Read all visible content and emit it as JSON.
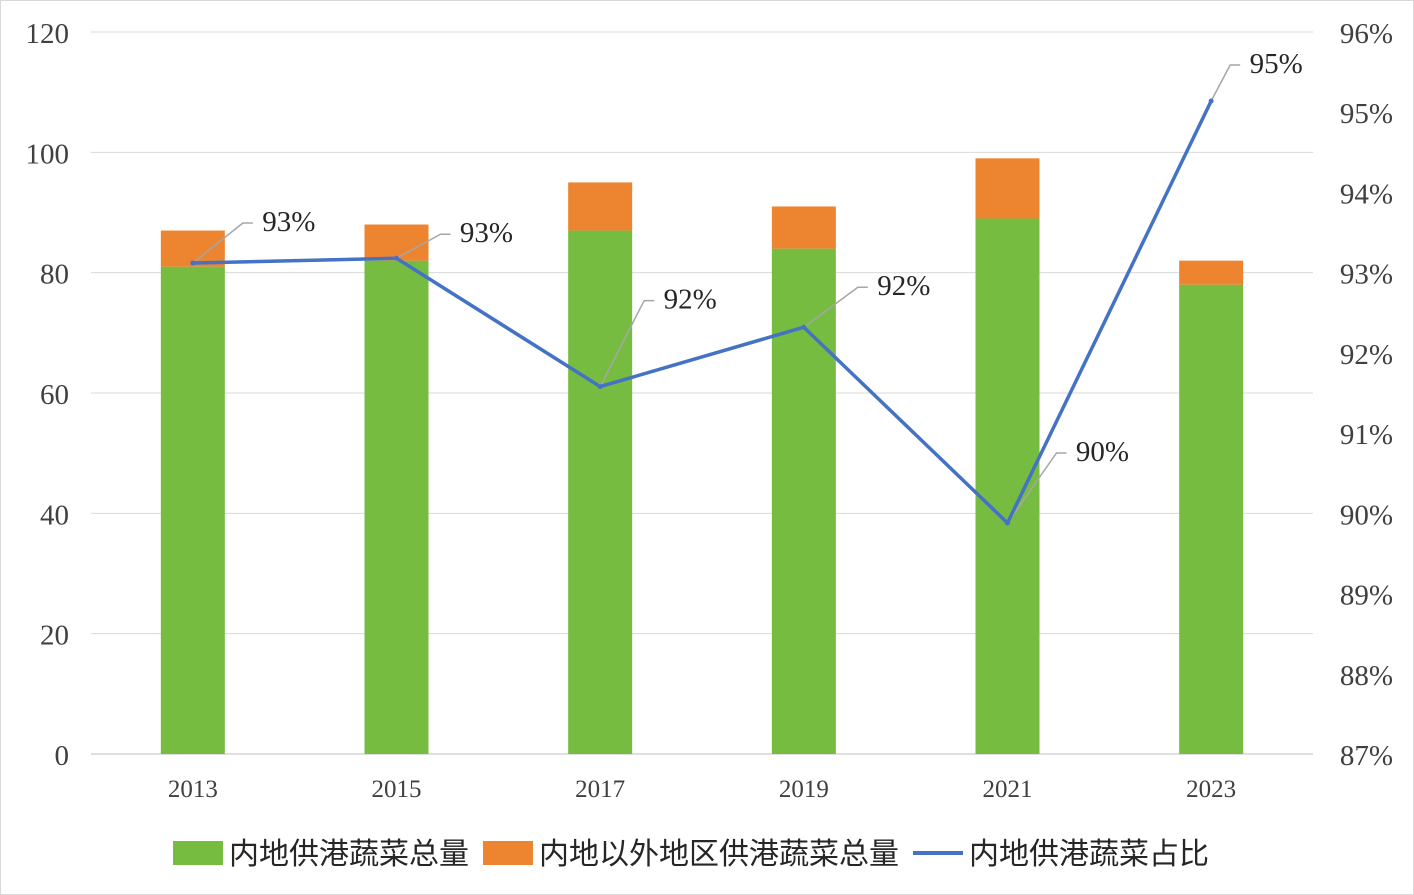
{
  "chart_data": {
    "type": "bar",
    "stacked": true,
    "title": "",
    "xlabel": "",
    "ylabel": "",
    "y2label": "",
    "categories": [
      "2013",
      "2015",
      "2017",
      "2019",
      "2021",
      "2023"
    ],
    "series": [
      {
        "name": "内地供港蔬菜总量",
        "type": "bar",
        "axis": "left",
        "color": "#76bc41",
        "values": [
          81,
          82,
          87,
          84,
          89,
          78
        ]
      },
      {
        "name": "内地以外地区供港蔬菜总量",
        "type": "bar",
        "axis": "left",
        "color": "#ed8430",
        "values": [
          6,
          6,
          8,
          7,
          10,
          4
        ]
      },
      {
        "name": "内地供港蔬菜占比",
        "type": "line",
        "axis": "right",
        "color": "#4472c4",
        "values": [
          93.12,
          93.18,
          91.58,
          92.32,
          89.88,
          95.14
        ],
        "data_labels": [
          "93%",
          "93%",
          "92%",
          "92%",
          "90%",
          "95%"
        ]
      }
    ],
    "ylim": [
      0,
      120
    ],
    "yticks": [
      0,
      20,
      40,
      60,
      80,
      100,
      120
    ],
    "y2lim": [
      87,
      96
    ],
    "y2ticks": [
      "87%",
      "88%",
      "89%",
      "90%",
      "91%",
      "92%",
      "93%",
      "94%",
      "95%",
      "96%"
    ],
    "grid": true,
    "legend_position": "bottom"
  }
}
